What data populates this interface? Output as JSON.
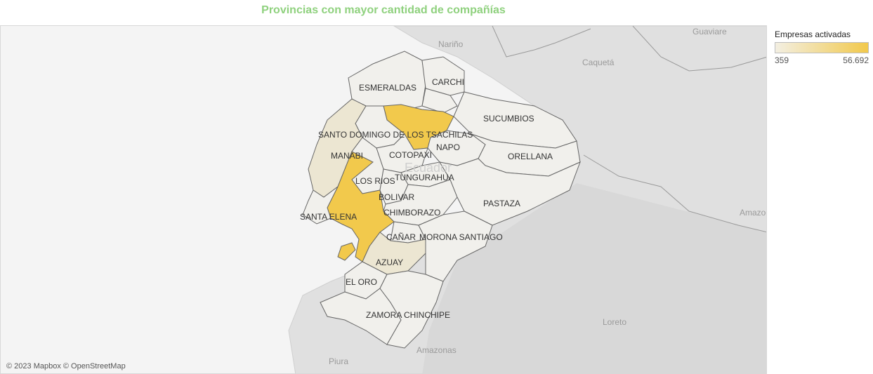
{
  "title": "Provincias con mayor cantidad de compañías",
  "legend": {
    "title": "Empresas activadas",
    "min": "359",
    "max": "56.692",
    "color_low": "#f3efe2",
    "color_high": "#f2c94c"
  },
  "attribution": "© 2023 Mapbox © OpenStreetMap",
  "context_labels": {
    "narino": "Nariño",
    "guaviare": "Guaviare",
    "caqueta": "Caquetá",
    "ecuador": "Ecuador",
    "amazonas_co": "Amazo",
    "loreto": "Loreto",
    "amazonas_pe": "Amazonas",
    "piura": "Piura"
  },
  "provinces": {
    "esmeraldas": "ESMERALDAS",
    "carchi": "CARCHI",
    "sucumbios": "SUCUMBIOS",
    "santo_domingo": "SANTO DOMINGO DE LOS TSACHILAS",
    "napo": "NAPO",
    "manabi": "MANABI",
    "cotopaxi": "COTOPAXI",
    "orellana": "ORELLANA",
    "tungurahua": "TUNGURAHUA",
    "los_rios": "LOS RIOS",
    "bolivar": "BOLIVAR",
    "pastaza": "PASTAZA",
    "chimborazo": "CHIMBORAZO",
    "santa_elena": "SANTA ELENA",
    "canar": "CAÑAR",
    "morona_santiago": "MORONA SANTIAGO",
    "azuay": "AZUAY",
    "el_oro": "EL ORO",
    "zamora_chinchipe": "ZAMORA CHINCHIPE"
  },
  "colors": {
    "high": "#f2c94c",
    "mid": "#ece6d2",
    "low": "#f1f0ec",
    "land": "#e2e2e2",
    "sea": "#f4f4f4"
  }
}
